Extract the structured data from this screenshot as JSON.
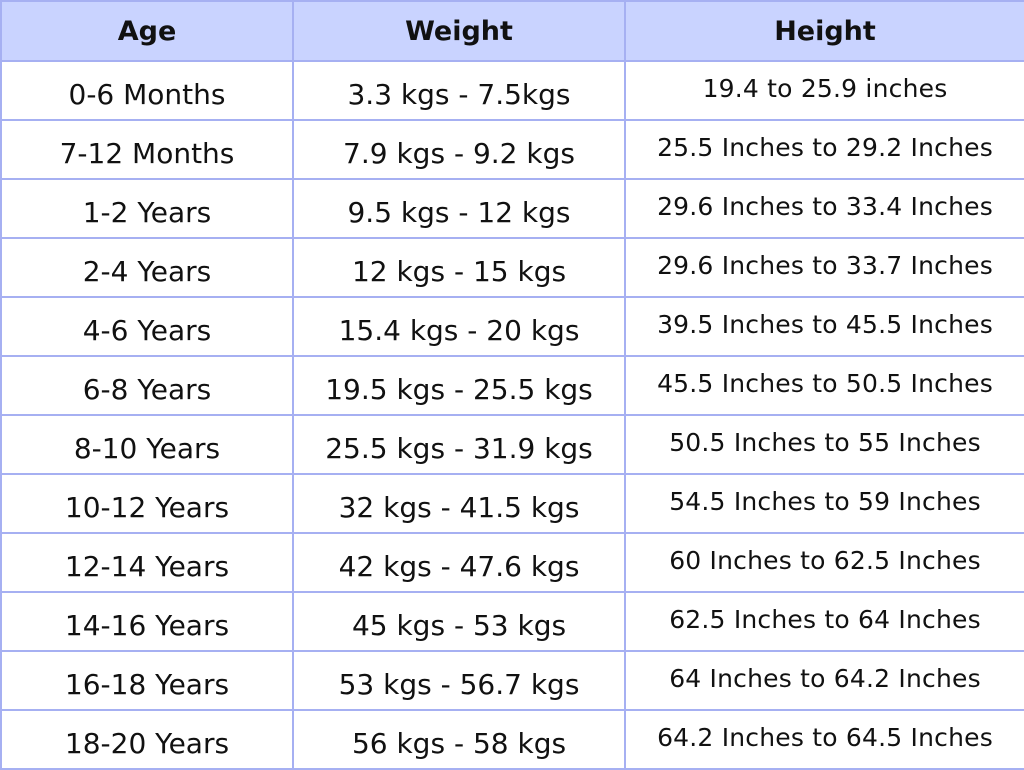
{
  "table": {
    "headers": [
      "Age",
      "Weight",
      "Height"
    ],
    "rows": [
      {
        "age": "0-6 Months",
        "weight": "3.3 kgs - 7.5kgs",
        "height": "19.4 to 25.9 inches"
      },
      {
        "age": "7-12 Months",
        "weight": "7.9 kgs - 9.2 kgs",
        "height": "25.5 Inches to 29.2 Inches"
      },
      {
        "age": "1-2 Years",
        "weight": "9.5 kgs - 12 kgs",
        "height": "29.6 Inches to 33.4 Inches"
      },
      {
        "age": "2-4 Years",
        "weight": "12 kgs - 15 kgs",
        "height": "29.6 Inches to 33.7 Inches"
      },
      {
        "age": "4-6 Years",
        "weight": "15.4 kgs - 20 kgs",
        "height": "39.5 Inches to 45.5 Inches"
      },
      {
        "age": "6-8 Years",
        "weight": "19.5 kgs - 25.5 kgs",
        "height": "45.5 Inches to 50.5 Inches"
      },
      {
        "age": "8-10 Years",
        "weight": "25.5 kgs - 31.9 kgs",
        "height": "50.5 Inches to 55 Inches"
      },
      {
        "age": "10-12 Years",
        "weight": "32 kgs - 41.5 kgs",
        "height": "54.5 Inches to 59 Inches"
      },
      {
        "age": "12-14 Years",
        "weight": "42 kgs - 47.6 kgs",
        "height": "60 Inches to 62.5 Inches"
      },
      {
        "age": "14-16 Years",
        "weight": "45 kgs - 53 kgs",
        "height": "62.5 Inches to 64 Inches"
      },
      {
        "age": "16-18 Years",
        "weight": "53 kgs - 56.7 kgs",
        "height": "64 Inches to 64.2 Inches"
      },
      {
        "age": "18-20 Years",
        "weight": "56 kgs - 58 kgs",
        "height": "64.2 Inches to 64.5 Inches"
      }
    ]
  },
  "colors": {
    "header_bg": "#c9d3ff",
    "border": "#a6b0f2",
    "text": "#111111",
    "cell_bg": "#ffffff"
  }
}
